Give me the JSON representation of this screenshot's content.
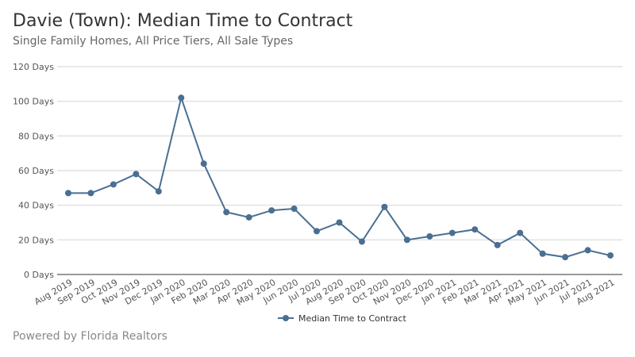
{
  "header": {
    "title": "Davie (Town): Median Time to Contract",
    "subtitle": "Single Family Homes, All Price Tiers, All Sale Types"
  },
  "footer": {
    "text": "Powered by Florida Realtors"
  },
  "chart_data": {
    "type": "line",
    "title": "Davie (Town): Median Time to Contract",
    "subtitle": "Single Family Homes, All Price Tiers, All Sale Types",
    "categories": [
      "Aug 2019",
      "Sep 2019",
      "Oct 2019",
      "Nov 2019",
      "Dec 2019",
      "Jan 2020",
      "Feb 2020",
      "Mar 2020",
      "Apr 2020",
      "May 2020",
      "Jun 2020",
      "Jul 2020",
      "Aug 2020",
      "Sep 2020",
      "Oct 2020",
      "Nov 2020",
      "Dec 2020",
      "Jan 2021",
      "Feb 2021",
      "Mar 2021",
      "Apr 2021",
      "May 2021",
      "Jun 2021",
      "Jul 2021",
      "Aug 2021"
    ],
    "series": [
      {
        "name": "Median Time to Contract",
        "color": "#4a6f92",
        "values": [
          47,
          47,
          52,
          58,
          48,
          102,
          64,
          36,
          33,
          37,
          38,
          25,
          30,
          19,
          39,
          20,
          22,
          24,
          26,
          17,
          24,
          12,
          10,
          14,
          11
        ]
      }
    ],
    "ylim": [
      0,
      120
    ],
    "yticks": [
      0,
      20,
      40,
      60,
      80,
      100,
      120
    ],
    "ytick_labels": [
      "0 Days",
      "20 Days",
      "40 Days",
      "60 Days",
      "80 Days",
      "100 Days",
      "120 Days"
    ],
    "grid": true,
    "legend": "bottom"
  }
}
